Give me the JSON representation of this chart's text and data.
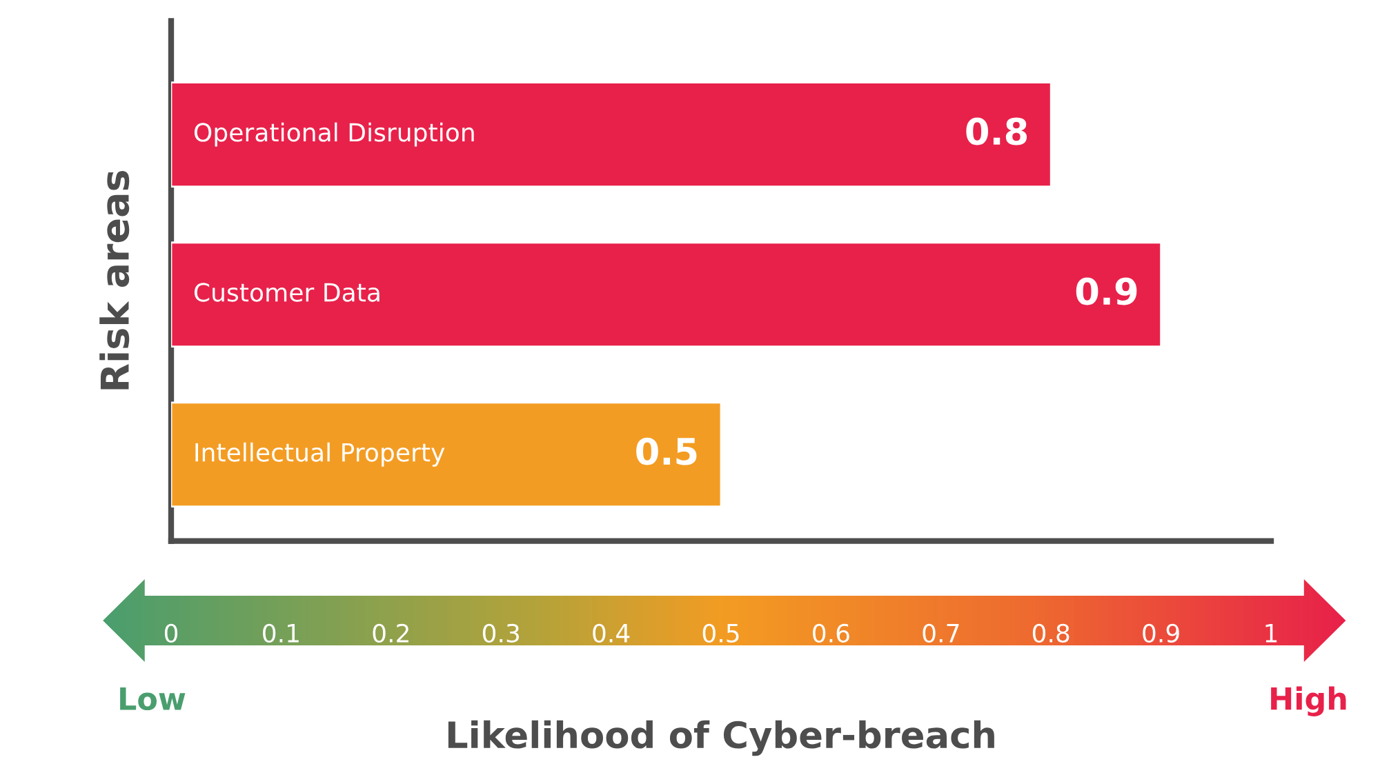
{
  "chart_data": {
    "type": "bar",
    "orientation": "horizontal",
    "xlabel": "Likelihood of Cyber-breach",
    "ylabel": "Risk areas",
    "categories": [
      "Operational Disruption",
      "Customer Data",
      "Intellectual Property"
    ],
    "values": [
      0.8,
      0.9,
      0.5
    ],
    "colors": [
      "#e8214a",
      "#e8214a",
      "#f39c23"
    ],
    "xlim": [
      0,
      1
    ],
    "xticks": [
      0,
      0.1,
      0.2,
      0.3,
      0.4,
      0.5,
      0.6,
      0.7,
      0.8,
      0.9,
      1
    ],
    "data_labels": true,
    "grid": false,
    "legend": false,
    "annotations": [
      "Low",
      "High"
    ]
  }
}
